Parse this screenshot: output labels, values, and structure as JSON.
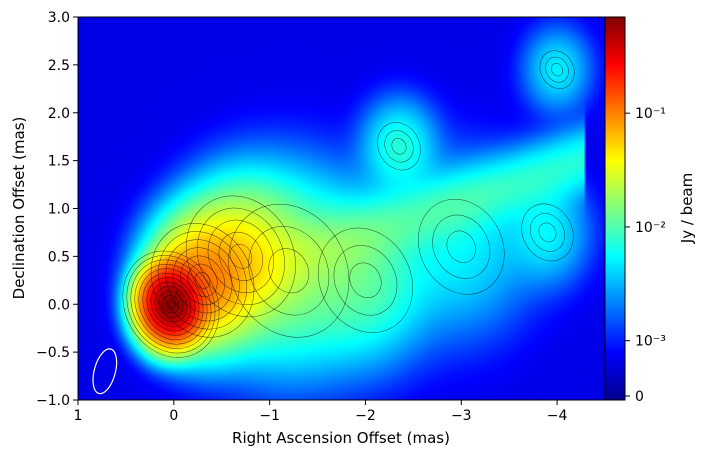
{
  "chart_data": {
    "type": "heatmap",
    "xlabel": "Right Ascension Offset (mas)",
    "ylabel": "Declination Offset (mas)",
    "xlim": [
      1,
      -4.5
    ],
    "ylim": [
      -1.0,
      3.0
    ],
    "x_ticks": [
      {
        "value": 1,
        "label": "1"
      },
      {
        "value": 0,
        "label": "0"
      },
      {
        "value": -1,
        "label": "−1"
      },
      {
        "value": -2,
        "label": "−2"
      },
      {
        "value": -3,
        "label": "−3"
      },
      {
        "value": -4,
        "label": "−4"
      }
    ],
    "y_ticks": [
      {
        "value": -1.0,
        "label": "−1.0"
      },
      {
        "value": -0.5,
        "label": "−0.5"
      },
      {
        "value": 0.0,
        "label": "0.0"
      },
      {
        "value": 0.5,
        "label": "0.5"
      },
      {
        "value": 1.0,
        "label": "1.0"
      },
      {
        "value": 1.5,
        "label": "1.5"
      },
      {
        "value": 2.0,
        "label": "2.0"
      },
      {
        "value": 2.5,
        "label": "2.5"
      },
      {
        "value": 3.0,
        "label": "3.0"
      }
    ],
    "colorbar": {
      "label": "Jy / beam",
      "scale": "log",
      "range": [
        0,
        0.7
      ],
      "colormap": "jet",
      "ticks": [
        {
          "value": 0,
          "label": "0"
        },
        {
          "value": 0.001,
          "label": "10⁻³"
        },
        {
          "value": 0.01,
          "label": "10⁻²"
        },
        {
          "value": 0.1,
          "label": "10⁻¹"
        }
      ]
    },
    "components": [
      {
        "x": 0.03,
        "y": 0.0,
        "peak": 0.6
      },
      {
        "x": -0.3,
        "y": 0.25,
        "peak": 0.08
      },
      {
        "x": -0.7,
        "y": 0.5,
        "peak": 0.03
      },
      {
        "x": -1.2,
        "y": 0.35,
        "peak": 0.012
      },
      {
        "x": -2.0,
        "y": 0.25,
        "peak": 0.008
      },
      {
        "x": -2.35,
        "y": 1.65,
        "peak": 0.006
      },
      {
        "x": -3.0,
        "y": 0.6,
        "peak": 0.004
      },
      {
        "x": -4.0,
        "y": 2.45,
        "peak": 0.004
      },
      {
        "x": -3.9,
        "y": 0.75,
        "peak": 0.004
      }
    ],
    "beam": {
      "x": 0.72,
      "y": -0.7,
      "major_mas": 0.48,
      "minor_mas": 0.22,
      "pa_deg": 15
    },
    "contours": true,
    "grid": false
  }
}
